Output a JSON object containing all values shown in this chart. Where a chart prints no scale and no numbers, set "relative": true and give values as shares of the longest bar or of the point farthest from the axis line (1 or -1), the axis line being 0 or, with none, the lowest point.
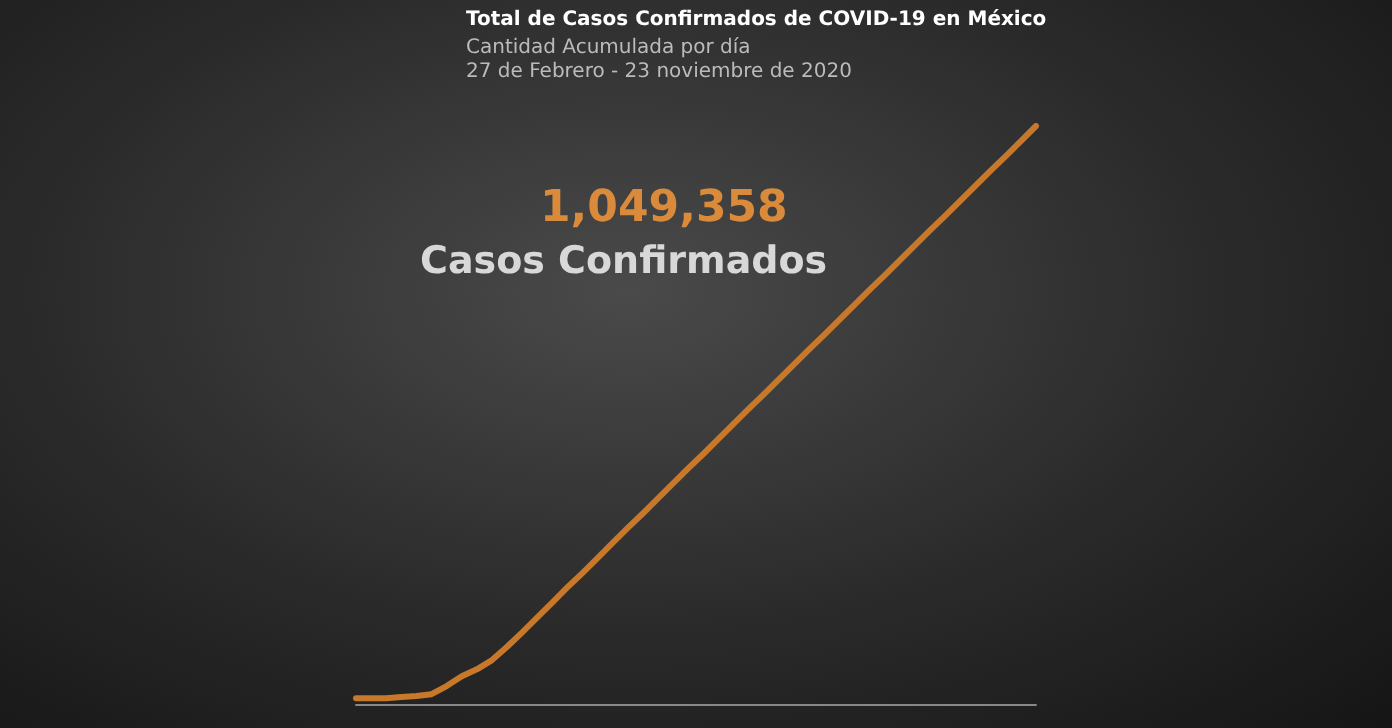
{
  "chart_data": {
    "type": "line",
    "title": "Total de Casos Confirmados de COVID-19 en México",
    "subtitle": "Cantidad Acumulada por día\n27 de Febrero - 23 noviembre de 2020",
    "annotations": [
      "1,049,358",
      "Casos Confirmados"
    ],
    "relative": true,
    "grid": false,
    "marker": "none",
    "line_style": "solid",
    "categories": [
      null,
      null,
      null,
      null,
      null,
      null,
      null,
      null,
      null,
      null,
      null,
      null,
      null,
      null,
      null,
      null,
      null,
      null,
      null,
      null,
      null,
      null,
      null,
      null,
      null,
      null,
      null,
      null,
      null,
      null,
      null,
      null,
      null,
      null,
      null,
      null,
      null,
      null,
      null,
      null,
      null,
      null,
      null,
      null,
      null,
      null
    ],
    "series": [
      {
        "color": "#c8782a",
        "values": [
          0.01,
          0.01,
          0.01,
          0.012,
          0.014,
          0.017,
          0.031,
          0.048,
          0.06,
          0.076,
          0.099,
          0.124,
          0.15,
          0.176,
          0.202,
          0.227,
          0.253,
          0.279,
          0.305,
          0.33,
          0.356,
          0.382,
          0.408,
          0.433,
          0.459,
          0.485,
          0.511,
          0.536,
          0.562,
          0.588,
          0.614,
          0.639,
          0.665,
          0.691,
          0.717,
          0.742,
          0.768,
          0.794,
          0.82,
          0.845,
          0.871,
          0.897,
          0.923,
          0.948,
          0.974,
          1
        ]
      }
    ]
  }
}
